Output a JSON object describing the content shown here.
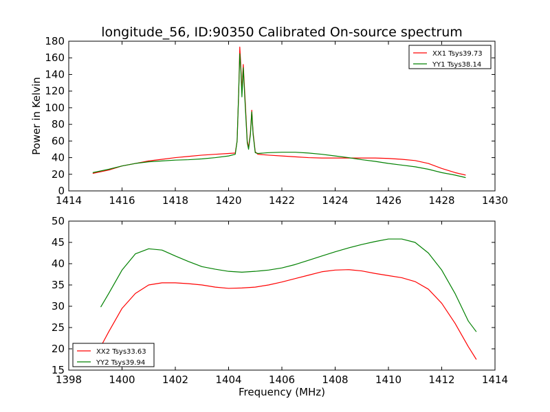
{
  "chart_data": [
    {
      "type": "line",
      "title": "longitude_56, ID:90350 Calibrated On-source spectrum",
      "xlabel": "",
      "ylabel": "Power in Kelvin",
      "xlim": [
        1414,
        1430
      ],
      "ylim": [
        0,
        180
      ],
      "xticks": [
        1414,
        1416,
        1418,
        1420,
        1422,
        1424,
        1426,
        1428,
        1430
      ],
      "yticks": [
        0,
        20,
        40,
        60,
        80,
        100,
        120,
        140,
        160,
        180
      ],
      "grid": false,
      "legend": "top-right",
      "series": [
        {
          "name": "XX1 Tsys39.73",
          "color": "#ff0000",
          "points": [
            [
              1414.9,
              21
            ],
            [
              1415.5,
              25
            ],
            [
              1416.0,
              30
            ],
            [
              1416.5,
              33
            ],
            [
              1417.0,
              36
            ],
            [
              1417.5,
              38
            ],
            [
              1418.0,
              40
            ],
            [
              1418.5,
              41.5
            ],
            [
              1419.0,
              43
            ],
            [
              1419.5,
              44
            ],
            [
              1420.0,
              45
            ],
            [
              1420.25,
              45.5
            ],
            [
              1420.32,
              60
            ],
            [
              1420.38,
              120
            ],
            [
              1420.42,
              173
            ],
            [
              1420.46,
              150
            ],
            [
              1420.5,
              120
            ],
            [
              1420.55,
              152
            ],
            [
              1420.62,
              110
            ],
            [
              1420.7,
              60
            ],
            [
              1420.75,
              52
            ],
            [
              1420.82,
              70
            ],
            [
              1420.87,
              97
            ],
            [
              1420.92,
              70
            ],
            [
              1421.0,
              47
            ],
            [
              1421.1,
              44
            ],
            [
              1421.5,
              43
            ],
            [
              1422.0,
              42
            ],
            [
              1422.5,
              41
            ],
            [
              1423.0,
              40
            ],
            [
              1423.5,
              39.5
            ],
            [
              1424.0,
              39.5
            ],
            [
              1424.5,
              39.5
            ],
            [
              1425.0,
              39.5
            ],
            [
              1425.5,
              39.5
            ],
            [
              1426.0,
              39
            ],
            [
              1426.5,
              38
            ],
            [
              1427.0,
              36.5
            ],
            [
              1427.5,
              33
            ],
            [
              1428.0,
              27
            ],
            [
              1428.5,
              22
            ],
            [
              1428.9,
              19
            ]
          ]
        },
        {
          "name": "YY1 Tsys38.14",
          "color": "#008000",
          "points": [
            [
              1414.9,
              22
            ],
            [
              1415.5,
              26
            ],
            [
              1416.0,
              30
            ],
            [
              1416.5,
              33
            ],
            [
              1417.0,
              35
            ],
            [
              1417.5,
              36
            ],
            [
              1418.0,
              37
            ],
            [
              1418.5,
              37.5
            ],
            [
              1419.0,
              38.5
            ],
            [
              1419.5,
              40
            ],
            [
              1420.0,
              42
            ],
            [
              1420.25,
              44
            ],
            [
              1420.32,
              60
            ],
            [
              1420.38,
              120
            ],
            [
              1420.42,
              165
            ],
            [
              1420.46,
              145
            ],
            [
              1420.5,
              113
            ],
            [
              1420.55,
              148
            ],
            [
              1420.62,
              105
            ],
            [
              1420.7,
              58
            ],
            [
              1420.75,
              50
            ],
            [
              1420.82,
              68
            ],
            [
              1420.87,
              95
            ],
            [
              1420.92,
              68
            ],
            [
              1421.0,
              46
            ],
            [
              1421.1,
              45
            ],
            [
              1421.5,
              46
            ],
            [
              1422.0,
              46.5
            ],
            [
              1422.5,
              46.5
            ],
            [
              1423.0,
              45.5
            ],
            [
              1423.5,
              44
            ],
            [
              1424.0,
              42
            ],
            [
              1424.5,
              40
            ],
            [
              1425.0,
              37.5
            ],
            [
              1425.5,
              35.5
            ],
            [
              1426.0,
              33
            ],
            [
              1426.5,
              31
            ],
            [
              1427.0,
              29
            ],
            [
              1427.5,
              26
            ],
            [
              1428.0,
              22
            ],
            [
              1428.5,
              19
            ],
            [
              1428.9,
              16
            ]
          ]
        }
      ]
    },
    {
      "type": "line",
      "title": "",
      "xlabel": "Frequency (MHz)",
      "ylabel": "",
      "xlim": [
        1398,
        1414
      ],
      "ylim": [
        15,
        50
      ],
      "xticks": [
        1398,
        1400,
        1402,
        1404,
        1406,
        1408,
        1410,
        1412,
        1414
      ],
      "yticks": [
        15,
        20,
        25,
        30,
        35,
        40,
        45,
        50
      ],
      "grid": false,
      "legend": "bottom-left",
      "series": [
        {
          "name": "XX2 Tsys33.63",
          "color": "#ff0000",
          "points": [
            [
              1399.2,
              20.5
            ],
            [
              1399.5,
              24
            ],
            [
              1400.0,
              29.5
            ],
            [
              1400.5,
              33
            ],
            [
              1401.0,
              35
            ],
            [
              1401.5,
              35.5
            ],
            [
              1402.0,
              35.5
            ],
            [
              1402.5,
              35.3
            ],
            [
              1403.0,
              35
            ],
            [
              1403.5,
              34.5
            ],
            [
              1404.0,
              34.2
            ],
            [
              1404.5,
              34.3
            ],
            [
              1405.0,
              34.5
            ],
            [
              1405.5,
              35
            ],
            [
              1406.0,
              35.7
            ],
            [
              1406.5,
              36.5
            ],
            [
              1407.0,
              37.3
            ],
            [
              1407.5,
              38.1
            ],
            [
              1408.0,
              38.5
            ],
            [
              1408.5,
              38.6
            ],
            [
              1409.0,
              38.3
            ],
            [
              1409.5,
              37.7
            ],
            [
              1410.0,
              37.2
            ],
            [
              1410.5,
              36.7
            ],
            [
              1411.0,
              35.8
            ],
            [
              1411.5,
              34
            ],
            [
              1412.0,
              30.7
            ],
            [
              1412.5,
              26
            ],
            [
              1413.0,
              20.5
            ],
            [
              1413.3,
              17.5
            ]
          ]
        },
        {
          "name": "YY2 Tsys39.94",
          "color": "#008000",
          "points": [
            [
              1399.2,
              29.8
            ],
            [
              1399.5,
              33
            ],
            [
              1400.0,
              38.5
            ],
            [
              1400.5,
              42.3
            ],
            [
              1401.0,
              43.5
            ],
            [
              1401.5,
              43.2
            ],
            [
              1402.0,
              41.8
            ],
            [
              1402.5,
              40.5
            ],
            [
              1403.0,
              39.3
            ],
            [
              1403.5,
              38.7
            ],
            [
              1404.0,
              38.2
            ],
            [
              1404.5,
              38
            ],
            [
              1405.0,
              38.2
            ],
            [
              1405.5,
              38.5
            ],
            [
              1406.0,
              39
            ],
            [
              1406.5,
              39.8
            ],
            [
              1407.0,
              40.8
            ],
            [
              1407.5,
              41.8
            ],
            [
              1408.0,
              42.8
            ],
            [
              1408.5,
              43.7
            ],
            [
              1409.0,
              44.5
            ],
            [
              1409.5,
              45.2
            ],
            [
              1410.0,
              45.8
            ],
            [
              1410.5,
              45.8
            ],
            [
              1411.0,
              45
            ],
            [
              1411.5,
              42.5
            ],
            [
              1412.0,
              38.5
            ],
            [
              1412.5,
              33
            ],
            [
              1413.0,
              26.5
            ],
            [
              1413.3,
              24
            ]
          ]
        }
      ]
    }
  ]
}
